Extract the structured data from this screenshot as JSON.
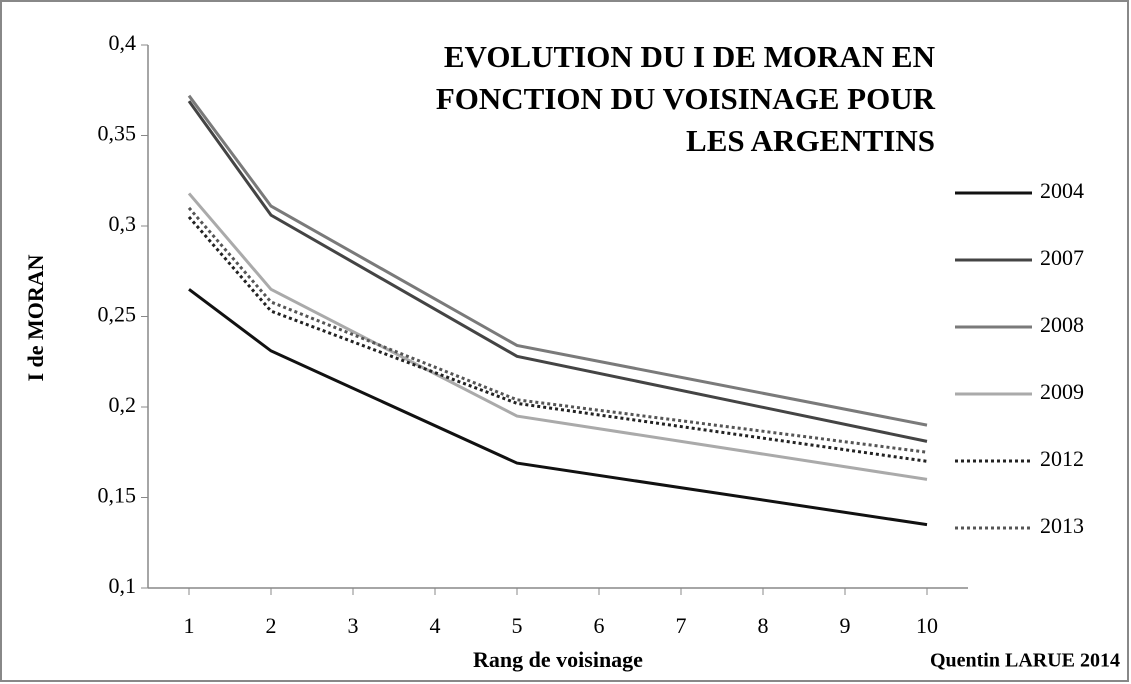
{
  "chart_data": {
    "type": "line",
    "title": [
      "EVOLUTION DU I DE MORAN EN",
      "FONCTION DU VOISINAGE POUR",
      "LES ARGENTINS"
    ],
    "x_label": "Rang de voisinage",
    "y_label": "I de MORAN",
    "source": "Quentin LARUE 2014",
    "x": [
      1,
      2,
      5,
      10
    ],
    "xlim": [
      0.5,
      10.5
    ],
    "xticks": [
      1,
      2,
      3,
      4,
      5,
      6,
      7,
      8,
      9,
      10
    ],
    "ylim": [
      0.1,
      0.4
    ],
    "yticks": [
      {
        "value": 0.1,
        "label": "0,1"
      },
      {
        "value": 0.15,
        "label": "0,15"
      },
      {
        "value": 0.2,
        "label": "0,2"
      },
      {
        "value": 0.25,
        "label": "0,25"
      },
      {
        "value": 0.3,
        "label": "0,3"
      },
      {
        "value": 0.35,
        "label": "0,35"
      },
      {
        "value": 0.4,
        "label": "0,4"
      }
    ],
    "legend": "right",
    "series": [
      {
        "name": "2004",
        "color": "#111111",
        "style": "solid",
        "values": [
          0.265,
          0.231,
          0.169,
          0.135
        ]
      },
      {
        "name": "2007",
        "color": "#444444",
        "style": "solid",
        "values": [
          0.369,
          0.306,
          0.228,
          0.181
        ]
      },
      {
        "name": "2008",
        "color": "#7a7a7a",
        "style": "solid",
        "values": [
          0.372,
          0.311,
          0.234,
          0.19
        ]
      },
      {
        "name": "2009",
        "color": "#aaaaaa",
        "style": "solid",
        "values": [
          0.318,
          0.265,
          0.195,
          0.16
        ]
      },
      {
        "name": "2012",
        "color": "#222222",
        "style": "dotted",
        "values": [
          0.305,
          0.253,
          0.202,
          0.17
        ]
      },
      {
        "name": "2013",
        "color": "#555555",
        "style": "dotted",
        "values": [
          0.31,
          0.258,
          0.204,
          0.175
        ]
      }
    ]
  }
}
